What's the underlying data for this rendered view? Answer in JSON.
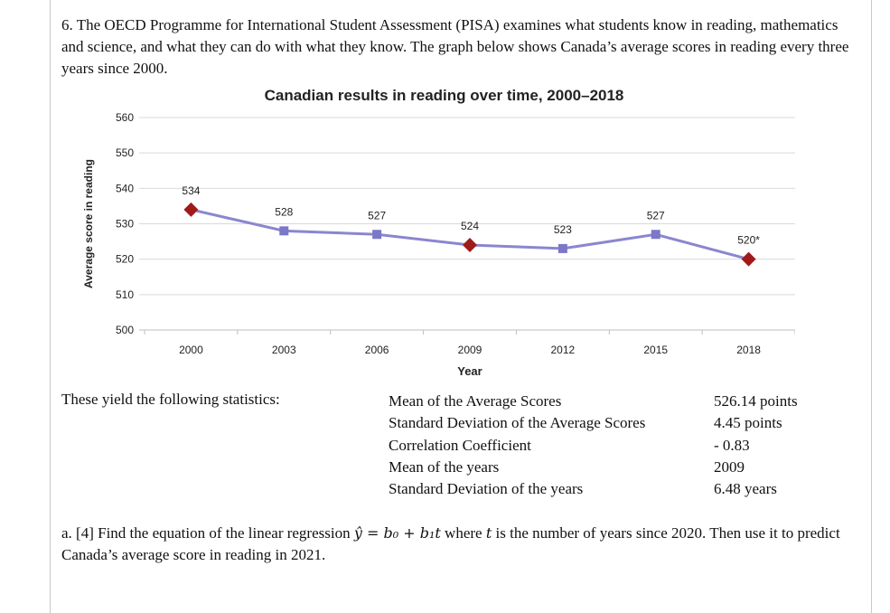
{
  "document": {
    "intro_text": "6. The OECD Programme for International Student Assessment (PISA) examines what students know in reading, mathematics and science, and what they can do with what they know. The graph below shows Canada’s average scores in reading every three years since 2000.",
    "stats_lead": "These yield the following statistics:",
    "stats": [
      {
        "label": "Mean of the Average Scores",
        "value": "526.14 points"
      },
      {
        "label": "Standard Deviation of the Average Scores",
        "value": "4.45 points"
      },
      {
        "label": "Correlation Coefficient",
        "value": "- 0.83"
      },
      {
        "label": "Mean of the years",
        "value": "2009"
      },
      {
        "label": "Standard Deviation of the years",
        "value": "6.48 years"
      }
    ],
    "question": {
      "prefix": "a. [4] Find the equation of the linear regression",
      "equation": "ŷ = b₀ + b₁t",
      "middle": "where",
      "variable": "t",
      "suffix": "is the number of years since 2020. Then use it to predict Canada’s average score in reading in 2021."
    }
  },
  "chart_data": {
    "type": "line",
    "title": "Canadian results in reading over time, 2000–2018",
    "xlabel": "Year",
    "ylabel": "Average score in reading",
    "categories": [
      "2000",
      "2003",
      "2006",
      "2009",
      "2012",
      "2015",
      "2018"
    ],
    "values": [
      534,
      528,
      527,
      524,
      523,
      527,
      520
    ],
    "data_labels": [
      "534",
      "528",
      "527",
      "524",
      "523",
      "527",
      "520*"
    ],
    "markers": [
      "diamond",
      "square",
      "square",
      "diamond",
      "square",
      "square",
      "diamond"
    ],
    "ylim": [
      500,
      560
    ],
    "yticks": [
      500,
      510,
      520,
      530,
      540,
      550,
      560
    ],
    "grid": true,
    "legend": "none",
    "colors": {
      "line": "#8b86cf",
      "square_marker": "#7b78c8",
      "diamond_marker": "#a01a1a",
      "gridline": "#d9d9d9",
      "axis": "#bfbfbf"
    }
  }
}
